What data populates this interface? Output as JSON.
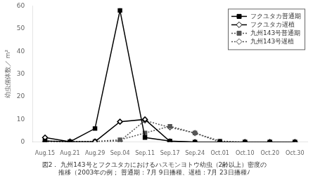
{
  "chart_data": {
    "type": "line",
    "title": [
      "図2． 九州143号とフクユタカにおけるハスモンヨトウ幼虫（2齢以上）密度の",
      "推移（2003年の例； 普通期：7月 9日播種、遅植：7月 23日播種ﾉ"
    ],
    "y_label": "幼虫個体数／ m²",
    "categories": [
      "Aug.15",
      "Aug.21",
      "Aug.29",
      "Sep.04",
      "Sep.11",
      "Sep.17",
      "Sep.24",
      "Oct.01",
      "Oct.10",
      "Oct.20",
      "Oct.30"
    ],
    "series": [
      {
        "name": "フクユタカ普通期",
        "color": "#000000",
        "marker": "square",
        "line_style": "solid",
        "values": [
          0.5,
          0.2,
          6,
          58,
          2,
          0.5,
          0,
          0,
          0,
          0,
          0
        ]
      },
      {
        "name": "フクユタカ遅植",
        "color": "#000000",
        "marker": "diamond",
        "line_style": "solid",
        "values": [
          2,
          0.2,
          0.2,
          9,
          10,
          0.3,
          0,
          0,
          0,
          0,
          0
        ]
      },
      {
        "name": "九州143号普通期",
        "color": "#555555",
        "marker": "square",
        "line_style": "dotted",
        "values": [
          0.5,
          0.2,
          0.3,
          1,
          4,
          7,
          4,
          0.5,
          0,
          0,
          0
        ]
      },
      {
        "name": "九州143号遅植",
        "color": "#555555",
        "marker": "diamond",
        "line_style": "dotted",
        "values": [
          0.2,
          0.2,
          0.3,
          0.5,
          9.5,
          6.5,
          4,
          0,
          0,
          0,
          0
        ]
      }
    ],
    "ylim": [
      0,
      60
    ],
    "yticks": [
      0,
      10,
      20,
      30,
      40,
      50,
      60
    ],
    "grid": false,
    "legend": "upper right"
  }
}
